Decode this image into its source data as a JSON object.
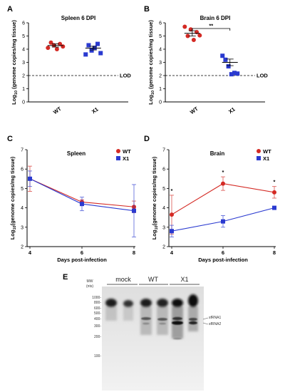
{
  "chart_data": [
    {
      "type": "scatter",
      "panel_label": "A",
      "title": "Spleen 6 DPI",
      "ylabel": "Log10 (genome copies/mg tissue)",
      "ylabel_main": "Log",
      "ylabel_sub": "10",
      "ylabel_rest": " (genome copies/mg tissue)",
      "ylim": [
        0,
        6
      ],
      "yticks": [
        "0",
        "1",
        "2",
        "3",
        "4",
        "5",
        "6"
      ],
      "categories": [
        "WT",
        "X1"
      ],
      "colors": [
        "#d42a24",
        "#2a3ad0"
      ],
      "markers": [
        "circle",
        "square"
      ],
      "points": [
        [
          4.1,
          4.5,
          4.3,
          4.0,
          4.4,
          4.2
        ],
        [
          3.6,
          4.3,
          3.9,
          4.1,
          4.4,
          3.7
        ]
      ],
      "means": [
        4.28,
        4.08
      ],
      "sem": [
        0.12,
        0.14
      ],
      "lod_value": 2,
      "lod_label": "LOD"
    },
    {
      "type": "scatter",
      "panel_label": "B",
      "title": "Brain 6 DPI",
      "ylabel": "Log10 (genome copies/mg tissue)",
      "ylabel_main": "Log",
      "ylabel_sub": "10",
      "ylabel_rest": " (genome copies/mg tissue)",
      "ylim": [
        0,
        6
      ],
      "yticks": [
        "0",
        "1",
        "2",
        "3",
        "4",
        "5",
        "6"
      ],
      "categories": [
        "WT",
        "X1"
      ],
      "colors": [
        "#d42a24",
        "#2a3ad0"
      ],
      "markers": [
        "circle",
        "square"
      ],
      "points": [
        [
          5.7,
          5.0,
          5.5,
          4.7,
          5.3,
          5.05
        ],
        [
          3.5,
          3.2,
          2.7,
          2.1,
          2.2,
          2.15
        ]
      ],
      "means": [
        5.2,
        3.0
      ],
      "sem": [
        0.2,
        0.25
      ],
      "lod_value": 2,
      "lod_label": "LOD",
      "significance": "**"
    },
    {
      "type": "line",
      "panel_label": "C",
      "title": "Spleen",
      "ylabel_main": "Log",
      "ylabel_sub": "10",
      "ylabel_rest": "(genome copies/mg tissue)",
      "xlabel": "Days post-infection",
      "x": [
        4,
        6,
        8
      ],
      "xticks": [
        "4",
        "6",
        "8"
      ],
      "ylim": [
        2,
        7
      ],
      "yticks": [
        "2",
        "3",
        "4",
        "5",
        "6",
        "7"
      ],
      "legend_position": "top-right",
      "series": [
        {
          "name": "WT",
          "color": "#d42a24",
          "marker": "circle",
          "values": [
            5.5,
            4.3,
            4.05
          ],
          "err": [
            0.65,
            0.12,
            0.3
          ]
        },
        {
          "name": "X1",
          "color": "#2a3ad0",
          "marker": "square",
          "values": [
            5.5,
            4.2,
            3.85
          ],
          "err": [
            0.4,
            0.35,
            1.35
          ]
        }
      ]
    },
    {
      "type": "line",
      "panel_label": "D",
      "title": "Brain",
      "ylabel_main": "Log",
      "ylabel_sub": "10",
      "ylabel_rest": "(genome copies/mg tissue)",
      "xlabel": "Days post-infection",
      "x": [
        4,
        6,
        8
      ],
      "xticks": [
        "4",
        "6",
        "8"
      ],
      "ylim": [
        2,
        7
      ],
      "yticks": [
        "2",
        "3",
        "4",
        "5",
        "6",
        "7"
      ],
      "legend_position": "top-right",
      "series": [
        {
          "name": "WT",
          "color": "#d42a24",
          "marker": "circle",
          "values": [
            3.65,
            5.25,
            4.8
          ],
          "err": [
            1.0,
            0.35,
            0.3
          ]
        },
        {
          "name": "X1",
          "color": "#2a3ad0",
          "marker": "square",
          "values": [
            2.8,
            3.3,
            4.0
          ],
          "err": [
            0.3,
            0.3,
            0.03
          ]
        }
      ],
      "annotations": [
        "*",
        "*",
        "*"
      ]
    }
  ],
  "gel": {
    "panel_label": "E",
    "mw_label_line1": "MW",
    "mw_label_line2": "(nts)",
    "lanes": [
      "mock",
      "WT",
      "X1"
    ],
    "markers": [
      "1000-",
      "800-",
      "600-",
      "500-",
      "400-",
      "300-",
      "200-",
      "100-"
    ],
    "bands": [
      "sfRNA1",
      "sfRNA2"
    ]
  }
}
